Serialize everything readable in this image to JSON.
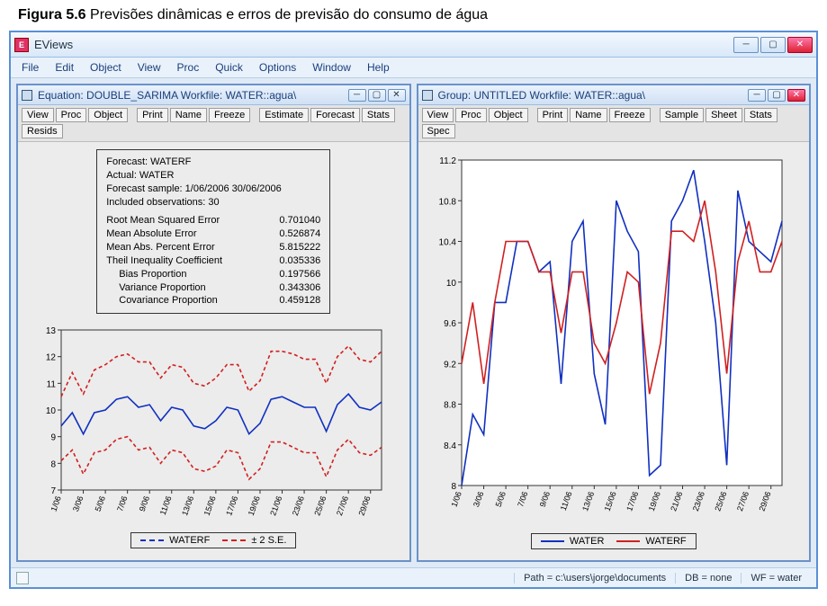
{
  "caption_bold": "Figura 5.6",
  "caption_rest": " Previsões dinâmicas e erros de previsão do consumo de água",
  "app": {
    "title": "EViews",
    "icon_label": "E",
    "menu": [
      "File",
      "Edit",
      "Object",
      "View",
      "Proc",
      "Quick",
      "Options",
      "Window",
      "Help"
    ]
  },
  "left": {
    "title": "Equation: DOUBLE_SARIMA   Workfile: WATER::agua\\",
    "toolbar": [
      "View",
      "Proc",
      "Object",
      "|",
      "Print",
      "Name",
      "Freeze",
      "|",
      "Estimate",
      "Forecast",
      "Stats",
      "Resids"
    ],
    "stats": {
      "header": [
        "Forecast: WATERF",
        "Actual: WATER",
        "Forecast sample: 1/06/2006 30/06/2006",
        "Included observations: 30"
      ],
      "metrics": [
        {
          "label": "Root Mean Squared Error",
          "value": "0.701040"
        },
        {
          "label": "Mean Absolute Error",
          "value": "0.526874"
        },
        {
          "label": "Mean Abs. Percent Error",
          "value": "5.815222"
        },
        {
          "label": "Theil Inequality Coefficient",
          "value": "0.035336"
        },
        {
          "label": "Bias Proportion",
          "value": "0.197566",
          "indent": true
        },
        {
          "label": "Variance Proportion",
          "value": "0.343306",
          "indent": true
        },
        {
          "label": "Covariance Proportion",
          "value": "0.459128",
          "indent": true
        }
      ]
    },
    "chart": {
      "ylim": [
        7,
        13
      ],
      "yticks": [
        7,
        8,
        9,
        10,
        11,
        12,
        13
      ],
      "xlabels": [
        "1/06",
        "3/06",
        "5/06",
        "7/06",
        "9/06",
        "11/06",
        "13/06",
        "15/06",
        "17/06",
        "19/06",
        "21/06",
        "23/06",
        "25/06",
        "27/06",
        "29/06"
      ],
      "waterf_color": "#1030c0",
      "se_color": "#d02020",
      "grid_color": "#bdbdbd",
      "bg": "#ececec",
      "waterf": [
        9.4,
        9.9,
        9.1,
        9.9,
        10.0,
        10.4,
        10.5,
        10.1,
        10.2,
        9.6,
        10.1,
        10.0,
        9.4,
        9.3,
        9.6,
        10.1,
        10.0,
        9.1,
        9.5,
        10.4,
        10.5,
        10.3,
        10.1,
        10.1,
        9.2,
        10.2,
        10.6,
        10.1,
        10.0,
        10.3
      ],
      "upper": [
        10.5,
        11.4,
        10.6,
        11.5,
        11.7,
        12.0,
        12.1,
        11.8,
        11.8,
        11.2,
        11.7,
        11.6,
        11.0,
        10.9,
        11.2,
        11.7,
        11.7,
        10.7,
        11.1,
        12.2,
        12.2,
        12.1,
        11.9,
        11.9,
        11.0,
        12.0,
        12.4,
        11.9,
        11.8,
        12.2
      ],
      "lower": [
        8.1,
        8.5,
        7.6,
        8.4,
        8.5,
        8.9,
        9.0,
        8.5,
        8.6,
        8.0,
        8.5,
        8.4,
        7.8,
        7.7,
        7.9,
        8.5,
        8.4,
        7.4,
        7.8,
        8.8,
        8.8,
        8.6,
        8.4,
        8.4,
        7.5,
        8.5,
        8.9,
        8.4,
        8.3,
        8.6
      ],
      "legend": [
        {
          "label": "WATERF",
          "color": "#1030c0",
          "dash": "0"
        },
        {
          "label": "± 2 S.E.",
          "color": "#d02020",
          "dash": "4,3"
        }
      ]
    }
  },
  "right": {
    "title": "Group: UNTITLED   Workfile: WATER::agua\\",
    "toolbar": [
      "View",
      "Proc",
      "Object",
      "|",
      "Print",
      "Name",
      "Freeze",
      "|",
      "Sample",
      "Sheet",
      "Stats",
      "Spec"
    ],
    "chart": {
      "ylim": [
        8.0,
        11.2
      ],
      "yticks": [
        8.0,
        8.4,
        8.8,
        9.2,
        9.6,
        10.0,
        10.4,
        10.8,
        11.2
      ],
      "xlabels": [
        "1/06",
        "3/06",
        "5/06",
        "7/06",
        "9/06",
        "11/06",
        "13/06",
        "15/06",
        "17/06",
        "19/06",
        "21/06",
        "23/06",
        "25/06",
        "27/06",
        "29/06"
      ],
      "bg": "#ffffff",
      "grid_color": "#ffffff",
      "axis_color": "#333333",
      "water_color": "#1030c0",
      "waterf_color": "#d02020",
      "water": [
        8.0,
        8.7,
        8.5,
        9.8,
        9.8,
        10.4,
        10.4,
        10.1,
        10.2,
        9.0,
        10.4,
        10.6,
        9.1,
        8.6,
        10.8,
        10.5,
        10.3,
        8.1,
        8.2,
        10.6,
        10.8,
        11.1,
        10.4,
        9.6,
        8.2,
        10.9,
        10.4,
        10.3,
        10.2,
        10.6
      ],
      "waterf": [
        9.2,
        9.8,
        9.0,
        9.8,
        10.4,
        10.4,
        10.4,
        10.1,
        10.1,
        9.5,
        10.1,
        10.1,
        9.4,
        9.2,
        9.6,
        10.1,
        10.0,
        8.9,
        9.4,
        10.5,
        10.5,
        10.4,
        10.8,
        10.1,
        9.1,
        10.2,
        10.6,
        10.1,
        10.1,
        10.4
      ],
      "legend": [
        {
          "label": "WATER",
          "color": "#1030c0"
        },
        {
          "label": "WATERF",
          "color": "#d02020"
        }
      ]
    }
  },
  "status": {
    "path": "Path = c:\\users\\jorge\\documents",
    "db": "DB = none",
    "wf": "WF = water"
  }
}
